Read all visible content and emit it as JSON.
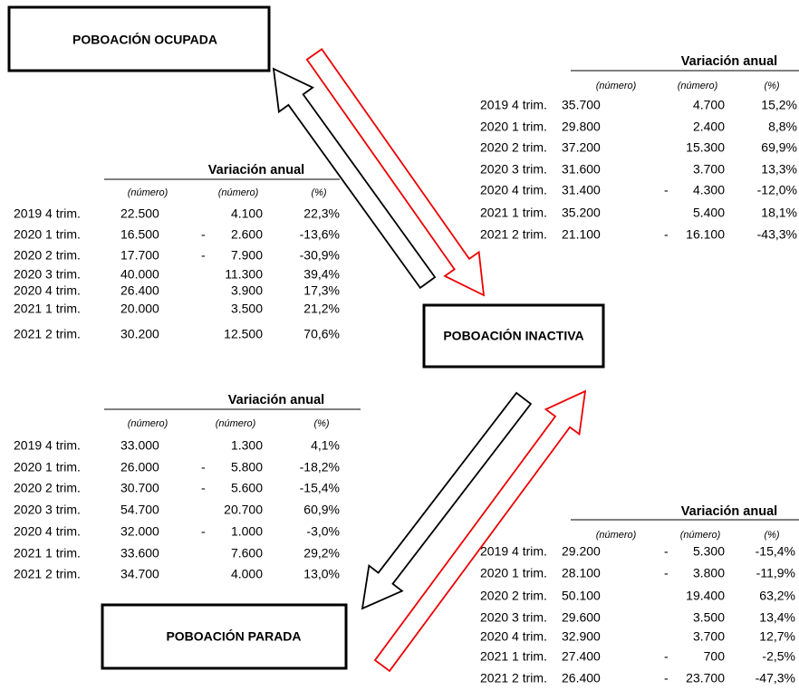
{
  "boxes": {
    "ocupada": "POBOACIÓN OCUPADA",
    "inactiva": "POBOACIÓN INACTIVA",
    "parada": "POBOACIÓN PARADA"
  },
  "tables": [
    {
      "header": "Variación anual",
      "columns": [
        "(número)",
        "(número)",
        "(%)"
      ],
      "rows": [
        {
          "period": "2019 4 trim.",
          "value": "22.500",
          "change": "4.100",
          "pct": "22,3%"
        },
        {
          "period": "2020 1 trim.",
          "value": "16.500",
          "sign": "-",
          "change": "2.600",
          "pct": "-13,6%"
        },
        {
          "period": "2020 2 trim.",
          "value": "17.700",
          "sign": "-",
          "change": "7.900",
          "pct": "-30,9%"
        },
        {
          "period": "2020 3 trim.",
          "value": "40.000",
          "change": "11.300",
          "pct": "39,4%"
        },
        {
          "period": "2020 4 trim.",
          "value": "26.400",
          "change": "3.900",
          "pct": "17,3%"
        },
        {
          "period": "2021 1 trim.",
          "value": "20.000",
          "change": "3.500",
          "pct": "21,2%"
        },
        {
          "period": "2021 2 trim.",
          "value": "30.200",
          "change": "12.500",
          "pct": "70,6%"
        }
      ]
    },
    {
      "header": "Variación anual",
      "columns": [
        "(número)",
        "(número)",
        "(%)"
      ],
      "rows": [
        {
          "period": "2019 4 trim.",
          "value": "35.700",
          "change": "4.700",
          "pct": "15,2%"
        },
        {
          "period": "2020 1 trim.",
          "value": "29.800",
          "change": "2.400",
          "pct": "8,8%"
        },
        {
          "period": "2020 2 trim.",
          "value": "37.200",
          "change": "15.300",
          "pct": "69,9%"
        },
        {
          "period": "2020 3 trim.",
          "value": "31.600",
          "change": "3.700",
          "pct": "13,3%"
        },
        {
          "period": "2020 4 trim.",
          "value": "31.400",
          "sign": "-",
          "change": "4.300",
          "pct": "-12,0%"
        },
        {
          "period": "2021 1 trim.",
          "value": "35.200",
          "change": "5.400",
          "pct": "18,1%"
        },
        {
          "period": "2021 2 trim.",
          "value": "21.100",
          "sign": "-",
          "change": "16.100",
          "pct": "-43,3%"
        }
      ]
    },
    {
      "header": "Variación anual",
      "columns": [
        "(número)",
        "(número)",
        "(%)"
      ],
      "rows": [
        {
          "period": "2019 4 trim.",
          "value": "33.000",
          "change": "1.300",
          "pct": "4,1%"
        },
        {
          "period": "2020 1 trim.",
          "value": "26.000",
          "sign": "-",
          "change": "5.800",
          "pct": "-18,2%"
        },
        {
          "period": "2020 2 trim.",
          "value": "30.700",
          "sign": "-",
          "change": "5.600",
          "pct": "-15,4%"
        },
        {
          "period": "2020 3 trim.",
          "value": "54.700",
          "change": "20.700",
          "pct": "60,9%"
        },
        {
          "period": "2020 4 trim.",
          "value": "32.000",
          "sign": "-",
          "change": "1.000",
          "pct": "-3,0%"
        },
        {
          "period": "2021 1 trim.",
          "value": "33.600",
          "change": "7.600",
          "pct": "29,2%"
        },
        {
          "period": "2021 2 trim.",
          "value": "34.700",
          "change": "4.000",
          "pct": "13,0%"
        }
      ]
    },
    {
      "header": "Variación anual",
      "columns": [
        "(número)",
        "(número)",
        "(%)"
      ],
      "rows": [
        {
          "period": "2019 4 trim.",
          "value": "29.200",
          "sign": "-",
          "change": "5.300",
          "pct": "-15,4%"
        },
        {
          "period": "2020 1 trim.",
          "value": "28.100",
          "sign": "-",
          "change": "3.800",
          "pct": "-11,9%"
        },
        {
          "period": "2020 2 trim.",
          "value": "50.100",
          "change": "19.400",
          "pct": "63,2%"
        },
        {
          "period": "2020 3 trim.",
          "value": "29.600",
          "change": "3.500",
          "pct": "13,4%"
        },
        {
          "period": "2020 4 trim.",
          "value": "32.900",
          "change": "3.700",
          "pct": "12,7%"
        },
        {
          "period": "2021 1 trim.",
          "value": "27.400",
          "sign": "-",
          "change": "700",
          "pct": "-2,5%"
        },
        {
          "period": "2021 2 trim.",
          "value": "26.400",
          "sign": "-",
          "change": "23.700",
          "pct": "-47,3%"
        }
      ]
    }
  ]
}
